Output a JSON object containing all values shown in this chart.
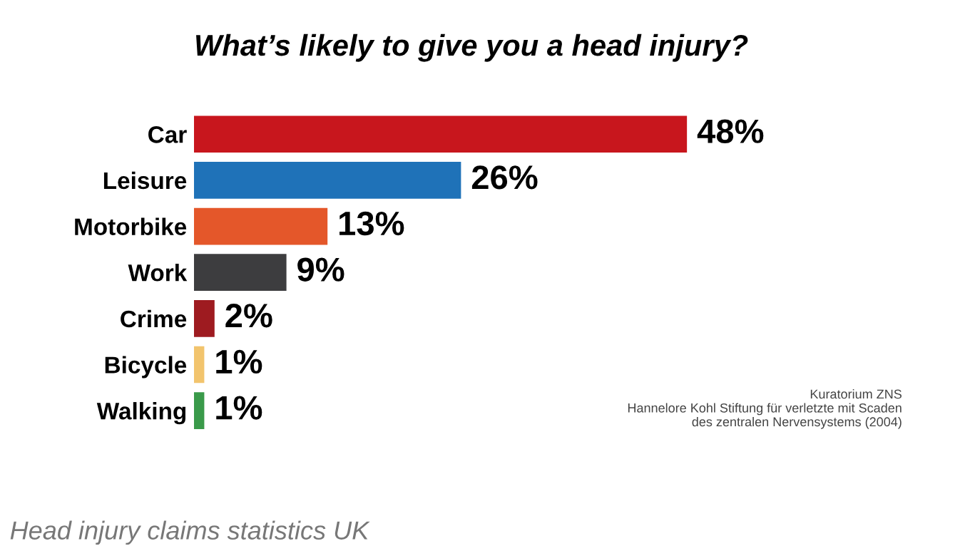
{
  "chart_data": {
    "type": "bar",
    "orientation": "horizontal",
    "title": "What’s likely to give you a head injury?",
    "categories": [
      "Car",
      "Leisure",
      "Motorbike",
      "Work",
      "Crime",
      "Bicycle",
      "Walking"
    ],
    "values": [
      48,
      26,
      13,
      9,
      2,
      1,
      1
    ],
    "colors": [
      "#c8161d",
      "#1f72b8",
      "#e4572a",
      "#3d3d3f",
      "#9e1b20",
      "#f2c46d",
      "#3a9a4a"
    ],
    "value_labels": [
      "48%",
      "26%",
      "13%",
      "9%",
      "2%",
      "1%",
      "1%"
    ],
    "annotations": [
      "Kuratorium ZNS\nHannelore Kohl Stiftung für verletzte mit Scaden\ndes zentralen Nervensystems (2004)",
      "Head injury claims statistics UK"
    ],
    "grid": false,
    "legend": false
  }
}
